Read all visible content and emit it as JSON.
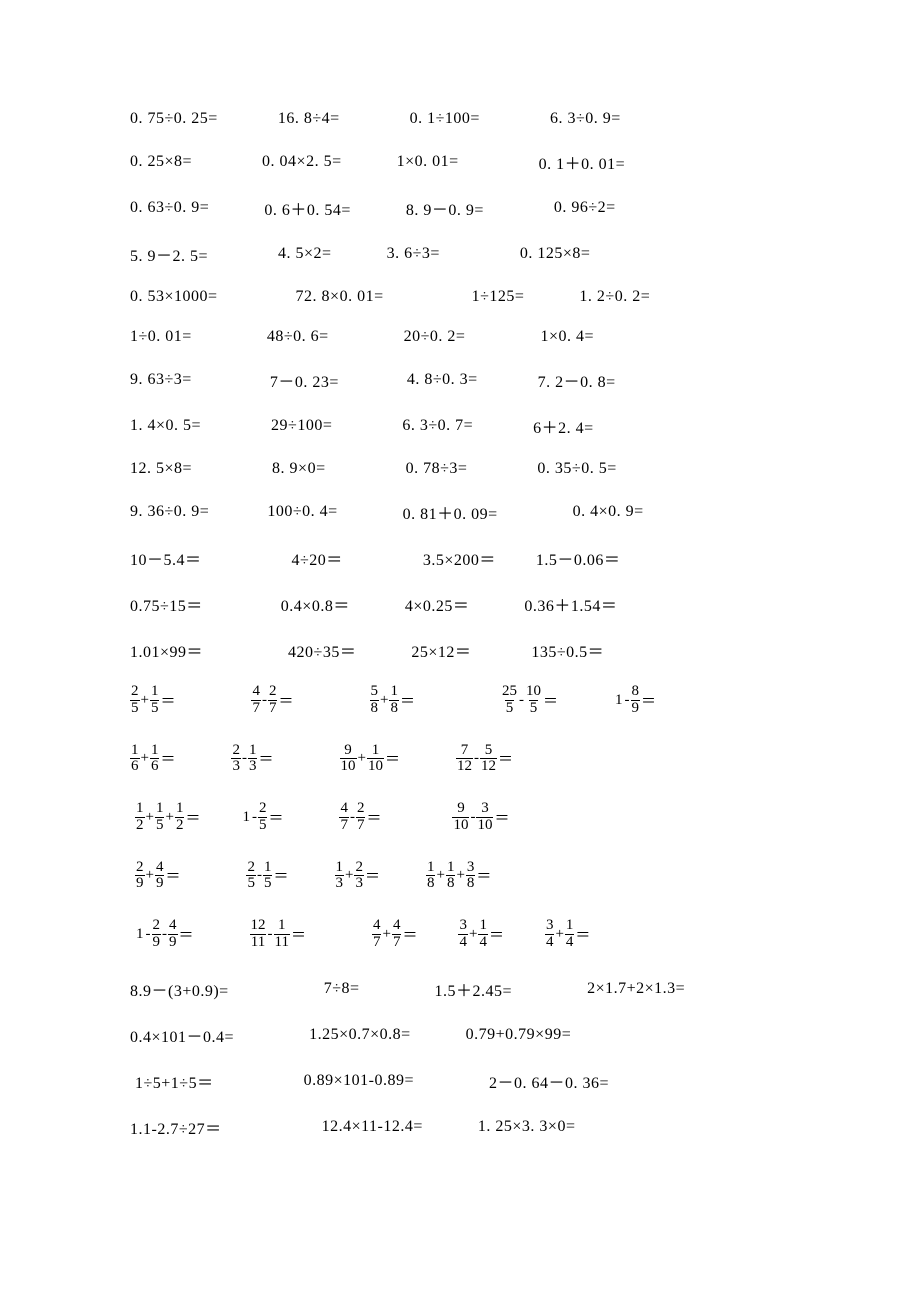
{
  "font_color": "#000000",
  "background_color": "#ffffff",
  "decimal_rows": [
    {
      "cells": [
        {
          "t": "0. 75÷0. 25=",
          "ml": 0
        },
        {
          "t": "16. 8÷4=",
          "ml": 60
        },
        {
          "t": "0. 1÷100=",
          "ml": 70
        },
        {
          "t": "6. 3÷0. 9=",
          "ml": 70
        }
      ]
    },
    {
      "cells": [
        {
          "t": "0. 25×8=",
          "ml": 0
        },
        {
          "t": "0. 04×2. 5=",
          "ml": 70
        },
        {
          "t": "1×0. 01=",
          "ml": 55
        },
        {
          "t": "0. 1＋0. 01=",
          "ml": 80
        }
      ]
    },
    {
      "cells": [
        {
          "t": "0. 63÷0. 9=",
          "ml": 0
        },
        {
          "t": "0. 6＋0. 54=",
          "ml": 55
        },
        {
          "t": "8. 9－0. 9=",
          "ml": 55
        },
        {
          "t": "0. 96÷2=",
          "ml": 70
        }
      ]
    },
    {
      "cells": [
        {
          "t": "5. 9－2. 5=",
          "ml": 0
        },
        {
          "t": "4. 5×2=",
          "ml": 70
        },
        {
          "t": "3. 6÷3=",
          "ml": 55
        },
        {
          "t": "0. 125×8=",
          "ml": 80
        }
      ]
    },
    {
      "cells": [
        {
          "t": "0. 53×1000=",
          "ml": 0
        },
        {
          "t": "72. 8×0. 01=",
          "ml": 78
        },
        {
          "t": "1÷125=",
          "ml": 88
        },
        {
          "t": "1. 2÷0. 2=",
          "ml": 55
        }
      ]
    },
    {
      "cells": [
        {
          "t": "1÷0. 01=",
          "ml": 0
        },
        {
          "t": "48÷0. 6=",
          "ml": 75
        },
        {
          "t": "20÷0. 2=",
          "ml": 75
        },
        {
          "t": "1×0. 4=",
          "ml": 75
        }
      ]
    },
    {
      "cells": [
        {
          "t": "9. 63÷3=",
          "ml": 0
        },
        {
          "t": "7－0. 23=",
          "ml": 78
        },
        {
          "t": "4. 8÷0. 3=",
          "ml": 68
        },
        {
          "t": "7. 2－0. 8=",
          "ml": 60
        }
      ]
    },
    {
      "cells": [
        {
          "t": "1. 4×0. 5=",
          "ml": 0
        },
        {
          "t": "29÷100=",
          "ml": 70
        },
        {
          "t": "6. 3÷0. 7=",
          "ml": 70
        },
        {
          "t": "6＋2. 4=",
          "ml": 60
        }
      ]
    },
    {
      "cells": [
        {
          "t": "12. 5×8=",
          "ml": 0
        },
        {
          "t": "8. 9×0=",
          "ml": 80
        },
        {
          "t": "0. 78÷3=",
          "ml": 80
        },
        {
          "t": "0. 35÷0. 5=",
          "ml": 70
        }
      ]
    },
    {
      "cells": [
        {
          "t": "9. 36÷0. 9=",
          "ml": 0
        },
        {
          "t": "100÷0. 4=",
          "ml": 58
        },
        {
          "t": "0. 81＋0. 09=",
          "ml": 65
        },
        {
          "t": "0. 4×0. 9=",
          "ml": 75
        }
      ]
    },
    {
      "cells": [
        {
          "t": "10－5.4＝",
          "ml": 0
        },
        {
          "t": "4÷20＝",
          "ml": 90
        },
        {
          "t": "3.5×200＝",
          "ml": 80
        },
        {
          "t": "1.5－0.06＝",
          "ml": 40
        }
      ]
    },
    {
      "cells": [
        {
          "t": "0.75÷15＝",
          "ml": 0
        },
        {
          "t": "0.4×0.8＝",
          "ml": 78
        },
        {
          "t": "4×0.25＝",
          "ml": 55
        },
        {
          "t": "0.36＋1.54＝",
          "ml": 55
        }
      ]
    },
    {
      "cells": [
        {
          "t": "1.01×99＝",
          "ml": 0
        },
        {
          "t": "420÷35＝",
          "ml": 85
        },
        {
          "t": "25×12＝",
          "ml": 55
        },
        {
          "t": "135÷0.5＝",
          "ml": 60
        }
      ]
    }
  ],
  "fraction_rows": [
    {
      "cells": [
        {
          "ml": 0,
          "parts": [
            {
              "f": [
                "2",
                "5"
              ]
            },
            {
              "o": "+"
            },
            {
              "f": [
                "1",
                "5"
              ]
            },
            {
              "o": "＝"
            }
          ]
        },
        {
          "ml": 75,
          "parts": [
            {
              "f": [
                "4",
                "7"
              ]
            },
            {
              "o": "-"
            },
            {
              "f": [
                "2",
                "7"
              ]
            },
            {
              "o": "＝"
            }
          ]
        },
        {
          "ml": 75,
          "parts": [
            {
              "f": [
                "5",
                "8"
              ]
            },
            {
              "o": "+"
            },
            {
              "f": [
                "1",
                "8"
              ]
            },
            {
              "o": "＝"
            }
          ]
        },
        {
          "ml": 85,
          "parts": [
            {
              "f": [
                "25",
                "5"
              ]
            },
            {
              "o": "-"
            },
            {
              "f": [
                "10",
                "5"
              ]
            },
            {
              "o": "＝"
            }
          ]
        },
        {
          "ml": 55,
          "parts": [
            {
              "o": "1"
            },
            {
              "o": "-"
            },
            {
              "f": [
                "8",
                "9"
              ]
            },
            {
              "o": "＝"
            }
          ]
        }
      ]
    },
    {
      "cells": [
        {
          "ml": 0,
          "parts": [
            {
              "f": [
                "1",
                "6"
              ]
            },
            {
              "o": "+"
            },
            {
              "f": [
                "1",
                "6"
              ]
            },
            {
              "o": "＝"
            }
          ]
        },
        {
          "ml": 55,
          "parts": [
            {
              "f": [
                "2",
                "3"
              ]
            },
            {
              "o": "-"
            },
            {
              "f": [
                "1",
                "3"
              ]
            },
            {
              "o": "＝"
            }
          ]
        },
        {
          "ml": 65,
          "parts": [
            {
              "f": [
                "9",
                "10"
              ]
            },
            {
              "o": "+"
            },
            {
              "f": [
                "1",
                "10"
              ]
            },
            {
              "o": "＝"
            }
          ]
        },
        {
          "ml": 55,
          "parts": [
            {
              "f": [
                "7",
                "12"
              ]
            },
            {
              "o": "-"
            },
            {
              "f": [
                "5",
                "12"
              ]
            },
            {
              "o": "＝"
            }
          ]
        }
      ]
    },
    {
      "cells": [
        {
          "ml": 5,
          "parts": [
            {
              "f": [
                "1",
                "2"
              ]
            },
            {
              "o": "+"
            },
            {
              "f": [
                "1",
                "5"
              ]
            },
            {
              "o": "+"
            },
            {
              "f": [
                "1",
                "2"
              ]
            },
            {
              "o": "＝"
            }
          ]
        },
        {
          "ml": 40,
          "parts": [
            {
              "o": "1"
            },
            {
              "o": "-"
            },
            {
              "f": [
                "2",
                "5"
              ]
            },
            {
              "o": "＝"
            }
          ]
        },
        {
          "ml": 55,
          "parts": [
            {
              "f": [
                "4",
                "7"
              ]
            },
            {
              "o": "-"
            },
            {
              "f": [
                "2",
                "7"
              ]
            },
            {
              "o": "＝"
            }
          ]
        },
        {
          "ml": 70,
          "parts": [
            {
              "f": [
                "9",
                "10"
              ]
            },
            {
              "o": "-"
            },
            {
              "f": [
                "3",
                "10"
              ]
            },
            {
              "o": "＝"
            }
          ]
        }
      ]
    },
    {
      "cells": [
        {
          "ml": 5,
          "parts": [
            {
              "f": [
                "2",
                "9"
              ]
            },
            {
              "o": "+"
            },
            {
              "f": [
                "4",
                "9"
              ]
            },
            {
              "o": "＝"
            }
          ]
        },
        {
          "ml": 65,
          "parts": [
            {
              "f": [
                "2",
                "5"
              ]
            },
            {
              "o": "-"
            },
            {
              "f": [
                "1",
                "5"
              ]
            },
            {
              "o": "＝"
            }
          ]
        },
        {
          "ml": 45,
          "parts": [
            {
              "f": [
                "1",
                "3"
              ]
            },
            {
              "o": "+"
            },
            {
              "f": [
                "2",
                "3"
              ]
            },
            {
              "o": "＝"
            }
          ]
        },
        {
          "ml": 45,
          "parts": [
            {
              "f": [
                "1",
                "8"
              ]
            },
            {
              "o": "+"
            },
            {
              "f": [
                "1",
                "8"
              ]
            },
            {
              "o": "+"
            },
            {
              "f": [
                "3",
                "8"
              ]
            },
            {
              "o": "＝"
            }
          ]
        }
      ]
    },
    {
      "cells": [
        {
          "ml": 5,
          "parts": [
            {
              "o": "1"
            },
            {
              "o": "-"
            },
            {
              "f": [
                "2",
                "9"
              ]
            },
            {
              "o": "-"
            },
            {
              "f": [
                "4",
                "9"
              ]
            },
            {
              "o": "＝"
            }
          ]
        },
        {
          "ml": 55,
          "parts": [
            {
              "f": [
                "12",
                "11"
              ]
            },
            {
              "o": "-"
            },
            {
              "f": [
                "1",
                "11"
              ]
            },
            {
              "o": "＝"
            }
          ]
        },
        {
          "ml": 65,
          "parts": [
            {
              "f": [
                "4",
                "7"
              ]
            },
            {
              "o": "+"
            },
            {
              "f": [
                "4",
                "7"
              ]
            },
            {
              "o": "＝"
            }
          ]
        },
        {
          "ml": 40,
          "parts": [
            {
              "f": [
                "3",
                "4"
              ]
            },
            {
              "o": "+"
            },
            {
              "f": [
                "1",
                "4"
              ]
            },
            {
              "o": "＝"
            }
          ]
        },
        {
          "ml": 40,
          "parts": [
            {
              "f": [
                "3",
                "4"
              ]
            },
            {
              "o": "+"
            },
            {
              "f": [
                "1",
                "4"
              ]
            },
            {
              "o": "＝"
            }
          ]
        }
      ]
    }
  ],
  "tail_rows": [
    {
      "cells": [
        {
          "t": "8.9－(3+0.9)=",
          "ml": 0
        },
        {
          "t": "7÷8=",
          "ml": 95
        },
        {
          "t": "1.5＋2.45=",
          "ml": 75
        },
        {
          "t": "2×1.7+2×1.3=",
          "ml": 75
        }
      ]
    },
    {
      "cells": [
        {
          "t": "0.4×101－0.4=",
          "ml": 0
        },
        {
          "t": "1.25×0.7×0.8=",
          "ml": 75
        },
        {
          "t": "0.79+0.79×99=",
          "ml": 55
        }
      ]
    },
    {
      "cells": [
        {
          "t": "1÷5+1÷5＝",
          "ml": 5
        },
        {
          "t": "0.89×101-0.89=",
          "ml": 90
        },
        {
          "t": "2－0. 64－0. 36=",
          "ml": 75
        }
      ]
    },
    {
      "cells": [
        {
          "t": "1.1-2.7÷27＝",
          "ml": 0
        },
        {
          "t": "12.4×11-12.4=",
          "ml": 100
        },
        {
          "t": "1. 25×3. 3×0=",
          "ml": 55
        }
      ]
    }
  ]
}
